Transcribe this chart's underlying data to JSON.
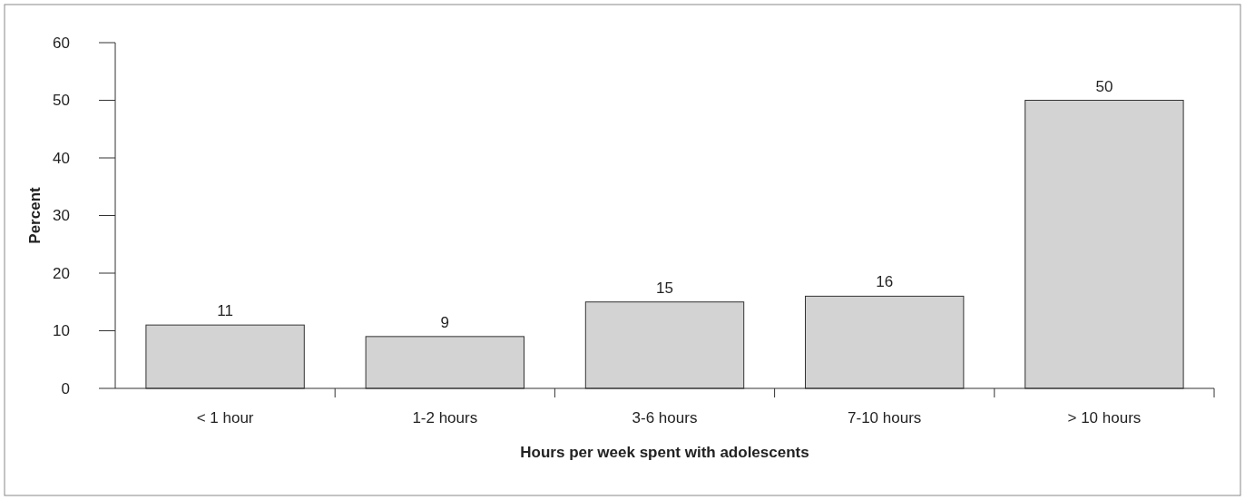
{
  "chart_data": {
    "type": "bar",
    "xlabel": "Hours per week spent with adolescents",
    "ylabel": "Percent",
    "categories": [
      "< 1 hour",
      "1-2 hours",
      "3-6 hours",
      "7-10 hours",
      "> 10 hours"
    ],
    "values": [
      11,
      9,
      15,
      16,
      50
    ],
    "color": "#d3d3d3",
    "ylim": [
      0,
      60
    ],
    "yticks": [
      0,
      10,
      20,
      30,
      40,
      50,
      60
    ],
    "grid": false,
    "data_labels": true
  }
}
